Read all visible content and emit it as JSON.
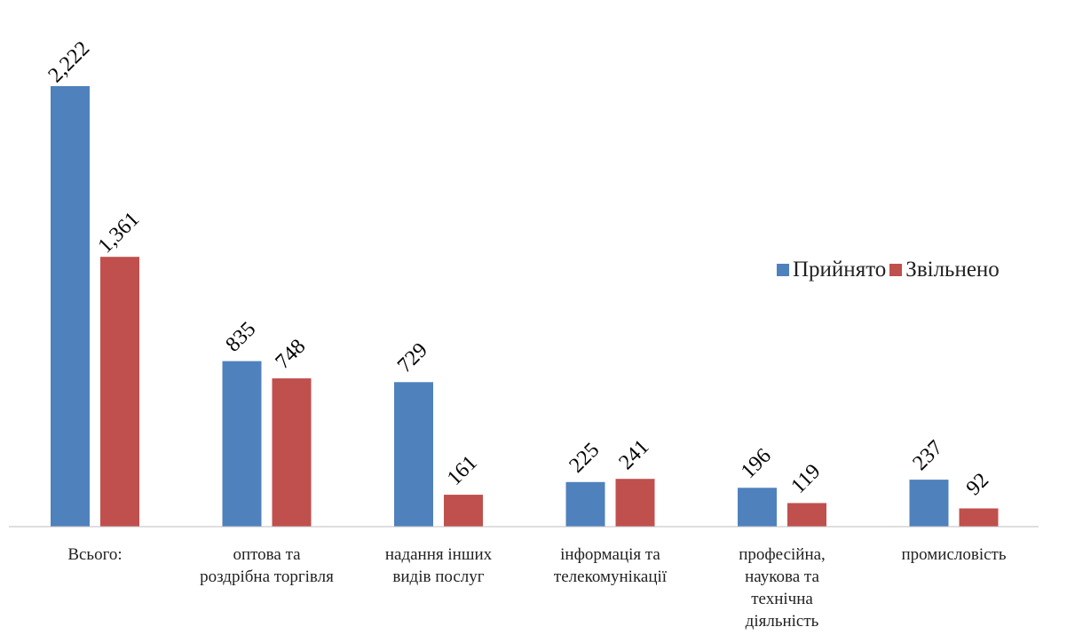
{
  "chart_data": {
    "type": "bar",
    "categories": [
      "Всього:",
      "оптова та роздрібна торгівля",
      "надання інших видів послуг",
      "інформація та телекомунікації",
      "професійна, наукова та технічна діяльність",
      "промисловість"
    ],
    "category_lines": [
      [
        "Всього:"
      ],
      [
        "оптова та",
        "роздрібна торгівля"
      ],
      [
        "надання інших",
        "видів послуг"
      ],
      [
        "інформація та",
        "телекомунікації"
      ],
      [
        "професійна,",
        "наукова та",
        "технічна",
        "діяльність"
      ],
      [
        "промисловість"
      ]
    ],
    "series": [
      {
        "name": "Прийнято",
        "color": "#4F81BD",
        "values": [
          2222,
          835,
          729,
          225,
          196,
          237
        ],
        "labels": [
          "2,222",
          "835",
          "729",
          "225",
          "196",
          "237"
        ]
      },
      {
        "name": "Звільнено",
        "color": "#C0504D",
        "values": [
          1361,
          748,
          161,
          241,
          119,
          92
        ],
        "labels": [
          "1,361",
          "748",
          "161",
          "241",
          "119",
          "92"
        ]
      }
    ],
    "ylim": [
      0,
      2222
    ],
    "grid": false,
    "legend_position": "right",
    "data_labels_rotated": true
  }
}
